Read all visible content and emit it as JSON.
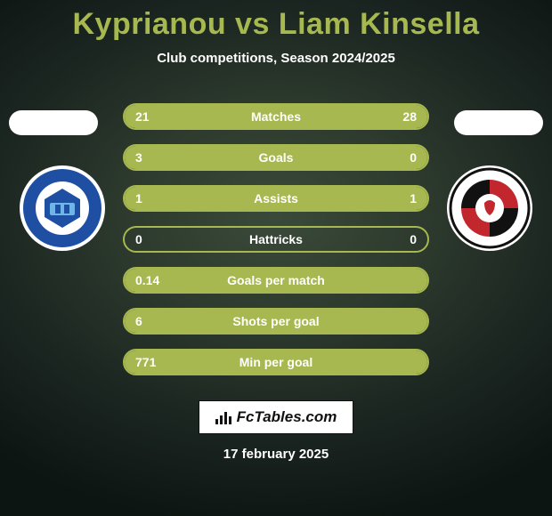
{
  "header": {
    "title": "Kyprianou vs Liam Kinsella",
    "subtitle": "Club competitions, Season 2024/2025",
    "title_color": "#a6b84f"
  },
  "players": {
    "left": {
      "name": "Kyprianou",
      "club": "Peterborough United",
      "badge_bg": "#1e4fa3"
    },
    "right": {
      "name": "Liam Kinsella",
      "club": "Cheltenham Town",
      "badge_bg": "#ffffff"
    }
  },
  "bars": {
    "accent": "#a6b84f",
    "border": "#a6b84f",
    "text": "#ffffff",
    "rows": [
      {
        "label": "Matches",
        "left": "21",
        "right": "28",
        "fill_left": 0.42,
        "fill_right": 0.58
      },
      {
        "label": "Goals",
        "left": "3",
        "right": "0",
        "fill_left": 1.0,
        "fill_right": 0.0
      },
      {
        "label": "Assists",
        "left": "1",
        "right": "1",
        "fill_left": 0.5,
        "fill_right": 0.5
      },
      {
        "label": "Hattricks",
        "left": "0",
        "right": "0",
        "fill_left": 0.0,
        "fill_right": 0.0
      },
      {
        "label": "Goals per match",
        "left": "0.14",
        "right": "",
        "fill_left": 1.0,
        "fill_right": 0.0
      },
      {
        "label": "Shots per goal",
        "left": "6",
        "right": "",
        "fill_left": 1.0,
        "fill_right": 0.0
      },
      {
        "label": "Min per goal",
        "left": "771",
        "right": "",
        "fill_left": 1.0,
        "fill_right": 0.0
      }
    ]
  },
  "footer": {
    "brand": "FcTables.com",
    "date": "17 february 2025"
  }
}
